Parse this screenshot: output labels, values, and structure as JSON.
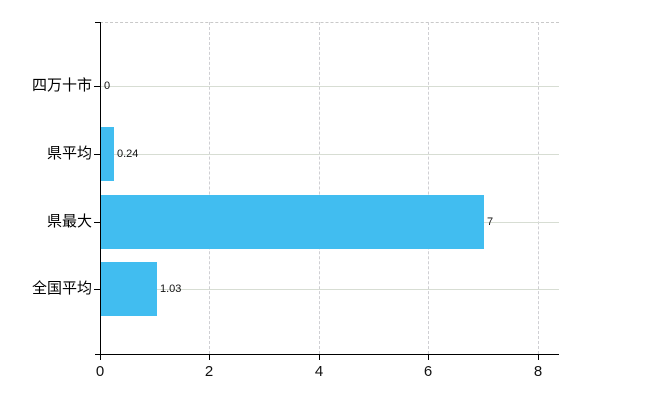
{
  "chart_data": {
    "type": "bar",
    "orientation": "horizontal",
    "title": "",
    "xlabel": "",
    "ylabel": "",
    "categories": [
      "四万十市",
      "県平均",
      "県最大",
      "全国平均"
    ],
    "values": [
      0,
      0.24,
      7,
      1.03
    ],
    "value_labels": [
      "0",
      "0.24",
      "7",
      "1.03"
    ],
    "x_ticks": [
      0,
      2,
      4,
      6,
      8
    ],
    "x_tick_labels": [
      "0",
      "2",
      "4",
      "6",
      "8"
    ],
    "xlim": [
      0,
      8.4
    ],
    "grid": true,
    "legend": false,
    "colors": {
      "bar": "#41bdf0",
      "axis": "#000000",
      "horizontal_grid": "#d7ddd3",
      "vertical_grid": "#cfcfd3",
      "background": "#ffffff",
      "text": "#000000"
    }
  }
}
